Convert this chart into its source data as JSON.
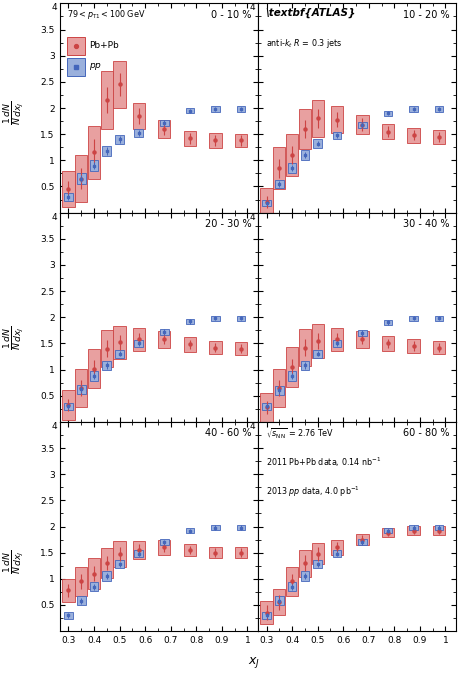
{
  "title_fontsize": 7.0,
  "tick_fontsize": 6.5,
  "xlim": [
    0.265,
    1.04
  ],
  "ylim": [
    0,
    4.0
  ],
  "yticks": [
    0.5,
    1.0,
    1.5,
    2.0,
    2.5,
    3.0,
    3.5
  ],
  "xticks": [
    0.3,
    0.4,
    0.5,
    0.6,
    0.7,
    0.8,
    0.9,
    1.0
  ],
  "panels": [
    {
      "label": "0 - 10 %",
      "PbPb_x": [
        0.3,
        0.35,
        0.4,
        0.45,
        0.5,
        0.575,
        0.675,
        0.775,
        0.875,
        0.975
      ],
      "PbPb_y": [
        0.45,
        0.65,
        1.15,
        2.15,
        2.45,
        1.85,
        1.6,
        1.42,
        1.38,
        1.38
      ],
      "PbPb_stat": [
        0.15,
        0.2,
        0.25,
        0.25,
        0.22,
        0.15,
        0.12,
        0.1,
        0.1,
        0.1
      ],
      "PbPb_sys": [
        0.35,
        0.45,
        0.5,
        0.55,
        0.45,
        0.25,
        0.18,
        0.14,
        0.14,
        0.12
      ],
      "pp_x": [
        0.3,
        0.35,
        0.4,
        0.45,
        0.5,
        0.575,
        0.675,
        0.775,
        0.875,
        0.975
      ],
      "pp_y": [
        0.3,
        0.65,
        0.9,
        1.18,
        1.4,
        1.52,
        1.72,
        1.95,
        1.98,
        1.98
      ],
      "pp_stat": [
        0.05,
        0.07,
        0.07,
        0.07,
        0.06,
        0.05,
        0.05,
        0.04,
        0.04,
        0.04
      ],
      "pp_sys": [
        0.08,
        0.1,
        0.1,
        0.1,
        0.08,
        0.07,
        0.06,
        0.05,
        0.05,
        0.05
      ]
    },
    {
      "label": "10 - 20 %",
      "PbPb_x": [
        0.3,
        0.35,
        0.4,
        0.45,
        0.5,
        0.575,
        0.675,
        0.775,
        0.875,
        0.975
      ],
      "PbPb_y": [
        0.2,
        0.85,
        1.1,
        1.6,
        1.8,
        1.78,
        1.68,
        1.55,
        1.48,
        1.45
      ],
      "PbPb_stat": [
        0.12,
        0.18,
        0.18,
        0.18,
        0.18,
        0.14,
        0.12,
        0.1,
        0.1,
        0.1
      ],
      "PbPb_sys": [
        0.28,
        0.4,
        0.4,
        0.38,
        0.35,
        0.25,
        0.18,
        0.15,
        0.14,
        0.13
      ],
      "pp_x": [
        0.3,
        0.35,
        0.4,
        0.45,
        0.5,
        0.575,
        0.675,
        0.775,
        0.875,
        0.975
      ],
      "pp_y": [
        0.18,
        0.55,
        0.85,
        1.1,
        1.32,
        1.48,
        1.68,
        1.9,
        1.98,
        1.98
      ],
      "pp_stat": [
        0.04,
        0.06,
        0.06,
        0.06,
        0.05,
        0.05,
        0.05,
        0.04,
        0.04,
        0.04
      ],
      "pp_sys": [
        0.06,
        0.08,
        0.09,
        0.09,
        0.08,
        0.07,
        0.06,
        0.05,
        0.05,
        0.05
      ]
    },
    {
      "label": "20 - 30 %",
      "PbPb_x": [
        0.3,
        0.35,
        0.4,
        0.45,
        0.5,
        0.575,
        0.675,
        0.775,
        0.875,
        0.975
      ],
      "PbPb_y": [
        0.32,
        0.65,
        1.02,
        1.4,
        1.52,
        1.58,
        1.58,
        1.48,
        1.42,
        1.4
      ],
      "PbPb_stat": [
        0.12,
        0.16,
        0.16,
        0.16,
        0.15,
        0.12,
        0.1,
        0.09,
        0.09,
        0.09
      ],
      "PbPb_sys": [
        0.28,
        0.36,
        0.38,
        0.36,
        0.32,
        0.22,
        0.16,
        0.14,
        0.13,
        0.12
      ],
      "pp_x": [
        0.3,
        0.35,
        0.4,
        0.45,
        0.5,
        0.575,
        0.675,
        0.775,
        0.875,
        0.975
      ],
      "pp_y": [
        0.3,
        0.62,
        0.88,
        1.08,
        1.3,
        1.5,
        1.72,
        1.92,
        1.98,
        1.98
      ],
      "pp_stat": [
        0.05,
        0.06,
        0.06,
        0.06,
        0.05,
        0.05,
        0.05,
        0.04,
        0.04,
        0.04
      ],
      "pp_sys": [
        0.07,
        0.09,
        0.09,
        0.09,
        0.08,
        0.07,
        0.06,
        0.05,
        0.05,
        0.05
      ]
    },
    {
      "label": "30 - 40 %",
      "PbPb_x": [
        0.3,
        0.35,
        0.4,
        0.45,
        0.5,
        0.575,
        0.675,
        0.775,
        0.875,
        0.975
      ],
      "PbPb_y": [
        0.28,
        0.65,
        1.05,
        1.42,
        1.55,
        1.58,
        1.58,
        1.5,
        1.45,
        1.42
      ],
      "PbPb_stat": [
        0.12,
        0.16,
        0.16,
        0.16,
        0.15,
        0.12,
        0.1,
        0.09,
        0.09,
        0.09
      ],
      "PbPb_sys": [
        0.28,
        0.36,
        0.38,
        0.36,
        0.32,
        0.22,
        0.16,
        0.14,
        0.13,
        0.12
      ],
      "pp_x": [
        0.3,
        0.35,
        0.4,
        0.45,
        0.5,
        0.575,
        0.675,
        0.775,
        0.875,
        0.975
      ],
      "pp_y": [
        0.3,
        0.6,
        0.88,
        1.08,
        1.3,
        1.5,
        1.7,
        1.9,
        1.98,
        1.98
      ],
      "pp_stat": [
        0.05,
        0.06,
        0.06,
        0.06,
        0.05,
        0.05,
        0.05,
        0.04,
        0.04,
        0.04
      ],
      "pp_sys": [
        0.07,
        0.09,
        0.09,
        0.09,
        0.08,
        0.07,
        0.06,
        0.05,
        0.05,
        0.05
      ]
    },
    {
      "label": "40 - 60 %",
      "PbPb_x": [
        0.3,
        0.35,
        0.4,
        0.45,
        0.5,
        0.575,
        0.675,
        0.775,
        0.875,
        0.975
      ],
      "PbPb_y": [
        0.78,
        0.95,
        1.1,
        1.3,
        1.48,
        1.55,
        1.6,
        1.55,
        1.5,
        1.5
      ],
      "PbPb_stat": [
        0.12,
        0.14,
        0.14,
        0.14,
        0.13,
        0.11,
        0.09,
        0.08,
        0.08,
        0.08
      ],
      "PbPb_sys": [
        0.22,
        0.28,
        0.3,
        0.28,
        0.25,
        0.18,
        0.14,
        0.12,
        0.11,
        0.11
      ],
      "pp_x": [
        0.3,
        0.35,
        0.4,
        0.45,
        0.5,
        0.575,
        0.675,
        0.775,
        0.875,
        0.975
      ],
      "pp_y": [
        0.3,
        0.58,
        0.85,
        1.05,
        1.28,
        1.48,
        1.7,
        1.92,
        1.98,
        1.98
      ],
      "pp_stat": [
        0.05,
        0.06,
        0.06,
        0.06,
        0.05,
        0.05,
        0.05,
        0.04,
        0.04,
        0.04
      ],
      "pp_sys": [
        0.07,
        0.09,
        0.09,
        0.09,
        0.08,
        0.07,
        0.06,
        0.05,
        0.05,
        0.05
      ]
    },
    {
      "label": "60 - 80 %",
      "PbPb_x": [
        0.3,
        0.35,
        0.4,
        0.45,
        0.5,
        0.575,
        0.675,
        0.775,
        0.875,
        0.975
      ],
      "PbPb_y": [
        0.35,
        0.55,
        0.95,
        1.3,
        1.48,
        1.6,
        1.75,
        1.88,
        1.92,
        1.92
      ],
      "PbPb_stat": [
        0.14,
        0.15,
        0.15,
        0.15,
        0.13,
        0.1,
        0.08,
        0.07,
        0.07,
        0.07
      ],
      "PbPb_sys": [
        0.22,
        0.25,
        0.28,
        0.26,
        0.2,
        0.15,
        0.11,
        0.09,
        0.09,
        0.09
      ],
      "pp_x": [
        0.3,
        0.35,
        0.4,
        0.45,
        0.5,
        0.575,
        0.675,
        0.775,
        0.875,
        0.975
      ],
      "pp_y": [
        0.3,
        0.58,
        0.85,
        1.05,
        1.28,
        1.48,
        1.7,
        1.92,
        1.98,
        1.98
      ],
      "pp_stat": [
        0.05,
        0.06,
        0.06,
        0.06,
        0.05,
        0.05,
        0.05,
        0.04,
        0.04,
        0.04
      ],
      "pp_sys": [
        0.07,
        0.09,
        0.09,
        0.09,
        0.08,
        0.07,
        0.06,
        0.05,
        0.05,
        0.05
      ]
    }
  ],
  "pbpb_color": "#cc4444",
  "pbpb_fill_color": "#e8a0a0",
  "pp_color": "#4466bb",
  "pp_fill_color": "#9ab0dc",
  "pbpb_bw": 0.048,
  "pp_bw": 0.034
}
